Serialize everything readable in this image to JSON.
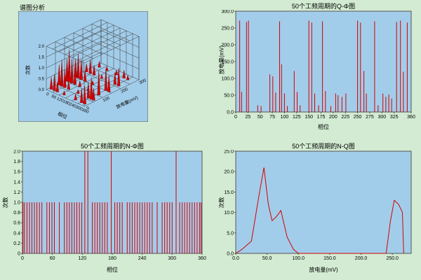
{
  "page": {
    "panel_label": "谱图分析",
    "bg_color": "#d2ebd2"
  },
  "colors": {
    "plot_bg": "#a2cdea",
    "stem": "#d40000",
    "frame": "#555555",
    "grid3d": "#3a3a3a",
    "text": "#000000"
  },
  "chart_data": [
    {
      "id": "prpd_3d",
      "type": "heatmap",
      "title": "",
      "xlabel": "相位",
      "ylabel": "放电量(mV)",
      "zlabel": "次数",
      "x_tick_labels": [
        "0",
        "60",
        "120",
        "180",
        "240",
        "300",
        "360"
      ],
      "y_tick_labels": [
        "0",
        "100",
        "200",
        "300"
      ],
      "z_tick_labels": [
        "0.0",
        "0.5",
        "1.0",
        "1.5",
        "2.0"
      ],
      "rows": [
        {
          "s": 0.9,
          "peaks": [
            [
              0.1,
              0.15
            ],
            [
              0.3,
              0.1
            ],
            [
              0.55,
              0.12
            ],
            [
              0.75,
              0.2
            ],
            [
              0.85,
              0.12
            ]
          ]
        },
        {
          "s": 0.7,
          "peaks": [
            [
              0.05,
              0.2
            ],
            [
              0.15,
              0.35
            ],
            [
              0.25,
              0.25
            ],
            [
              0.45,
              0.1
            ],
            [
              0.8,
              0.3
            ],
            [
              0.9,
              0.45
            ]
          ]
        },
        {
          "s": 0.5,
          "peaks": [
            [
              0.05,
              0.45
            ],
            [
              0.12,
              0.6
            ],
            [
              0.2,
              0.5
            ],
            [
              0.3,
              0.25
            ],
            [
              0.5,
              0.1
            ],
            [
              0.85,
              0.55
            ],
            [
              0.93,
              0.4
            ]
          ]
        },
        {
          "s": 0.35,
          "peaks": [
            [
              0.04,
              0.55
            ],
            [
              0.1,
              0.8
            ],
            [
              0.17,
              0.6
            ],
            [
              0.25,
              0.4
            ],
            [
              0.38,
              0.15
            ],
            [
              0.6,
              0.08
            ],
            [
              0.88,
              0.6
            ]
          ]
        },
        {
          "s": 0.2,
          "peaks": [
            [
              0.05,
              0.5
            ],
            [
              0.12,
              0.65
            ],
            [
              0.2,
              0.45
            ],
            [
              0.3,
              0.2
            ],
            [
              0.55,
              0.1
            ],
            [
              0.82,
              0.4
            ],
            [
              0.9,
              0.55
            ],
            [
              0.96,
              0.3
            ]
          ]
        },
        {
          "s": 0.05,
          "peaks": [
            [
              0.06,
              0.3
            ],
            [
              0.14,
              0.4
            ],
            [
              0.22,
              0.25
            ],
            [
              0.4,
              0.1
            ],
            [
              0.7,
              0.15
            ],
            [
              0.86,
              0.35
            ],
            [
              0.94,
              0.45
            ]
          ]
        }
      ]
    },
    {
      "id": "q_phi",
      "type": "bar",
      "title": "50个工频周期的Q-Φ图",
      "xlabel": "相位",
      "ylabel": "放电量(mV)",
      "xlim": [
        0,
        360
      ],
      "ylim": [
        0,
        300
      ],
      "xtick_vals": [
        0,
        25,
        50,
        75,
        100,
        125,
        150,
        175,
        200,
        225,
        250,
        275,
        300,
        325,
        360
      ],
      "xtick_labels": [
        "0",
        "25",
        "50",
        "75",
        "100",
        "125",
        "150",
        "175",
        "200",
        "225",
        "250",
        "275",
        "300",
        "325",
        "360"
      ],
      "ytick_vals": [
        300,
        250,
        200,
        150,
        100,
        50,
        0
      ],
      "ytick_labels": [
        "300.0",
        "250.0",
        "200.0",
        "150.0",
        "100.0",
        "50.0",
        "0.0"
      ],
      "stems": [
        [
          8,
          272
        ],
        [
          12,
          60
        ],
        [
          22,
          268
        ],
        [
          26,
          272
        ],
        [
          45,
          20
        ],
        [
          52,
          18
        ],
        [
          70,
          112
        ],
        [
          76,
          106
        ],
        [
          82,
          58
        ],
        [
          90,
          270
        ],
        [
          94,
          142
        ],
        [
          100,
          55
        ],
        [
          106,
          18
        ],
        [
          120,
          122
        ],
        [
          126,
          60
        ],
        [
          132,
          20
        ],
        [
          150,
          272
        ],
        [
          156,
          266
        ],
        [
          162,
          55
        ],
        [
          170,
          20
        ],
        [
          178,
          270
        ],
        [
          184,
          62
        ],
        [
          195,
          18
        ],
        [
          205,
          55
        ],
        [
          210,
          50
        ],
        [
          218,
          45
        ],
        [
          226,
          55
        ],
        [
          250,
          272
        ],
        [
          256,
          266
        ],
        [
          263,
          122
        ],
        [
          268,
          55
        ],
        [
          285,
          270
        ],
        [
          292,
          20
        ],
        [
          302,
          55
        ],
        [
          308,
          45
        ],
        [
          314,
          52
        ],
        [
          320,
          40
        ],
        [
          330,
          268
        ],
        [
          338,
          272
        ],
        [
          344,
          120
        ],
        [
          352,
          266
        ]
      ]
    },
    {
      "id": "n_phi",
      "type": "bar",
      "title": "50个工频周期的N-Φ图",
      "xlabel": "相位",
      "ylabel": "次数",
      "xlim": [
        0,
        360
      ],
      "ylim": [
        0,
        2
      ],
      "xtick_vals": [
        0,
        60,
        120,
        180,
        240,
        300,
        360
      ],
      "xtick_labels": [
        "0",
        "60",
        "120",
        "180",
        "240",
        "300",
        "360"
      ],
      "ytick_vals": [
        2.0,
        1.8,
        1.6,
        1.4,
        1.2,
        1.0,
        0.8,
        0.6,
        0.4,
        0.2,
        0
      ],
      "ytick_labels": [
        "2.0",
        "1.8",
        "1.6",
        "1.4",
        "1.2",
        "1.0",
        "0.8",
        "0.6",
        "0.4",
        "0.2",
        "0"
      ],
      "stems": [
        [
          1,
          1
        ],
        [
          4,
          1
        ],
        [
          9,
          1
        ],
        [
          14,
          1
        ],
        [
          19,
          1
        ],
        [
          24,
          1
        ],
        [
          29,
          1
        ],
        [
          34,
          1
        ],
        [
          39,
          1
        ],
        [
          49,
          1
        ],
        [
          54,
          1
        ],
        [
          59,
          1
        ],
        [
          64,
          1
        ],
        [
          74,
          1
        ],
        [
          84,
          1
        ],
        [
          89,
          1
        ],
        [
          94,
          1
        ],
        [
          99,
          1
        ],
        [
          104,
          1
        ],
        [
          109,
          1
        ],
        [
          114,
          1
        ],
        [
          119,
          1
        ],
        [
          125,
          2
        ],
        [
          131,
          2
        ],
        [
          140,
          1
        ],
        [
          145,
          1
        ],
        [
          150,
          1
        ],
        [
          155,
          1
        ],
        [
          160,
          1
        ],
        [
          165,
          1
        ],
        [
          170,
          1
        ],
        [
          178,
          2
        ],
        [
          185,
          1
        ],
        [
          190,
          1
        ],
        [
          195,
          1
        ],
        [
          200,
          1
        ],
        [
          210,
          1
        ],
        [
          215,
          1
        ],
        [
          220,
          1
        ],
        [
          225,
          1
        ],
        [
          230,
          1
        ],
        [
          235,
          1
        ],
        [
          240,
          1
        ],
        [
          245,
          1
        ],
        [
          250,
          1
        ],
        [
          255,
          1
        ],
        [
          260,
          1
        ],
        [
          270,
          1
        ],
        [
          280,
          1
        ],
        [
          285,
          1
        ],
        [
          290,
          1
        ],
        [
          295,
          1
        ],
        [
          300,
          1
        ],
        [
          308,
          2
        ],
        [
          315,
          1
        ],
        [
          320,
          1
        ],
        [
          325,
          1
        ],
        [
          330,
          1
        ],
        [
          335,
          1
        ],
        [
          340,
          1
        ],
        [
          345,
          1
        ],
        [
          350,
          1
        ],
        [
          355,
          1
        ],
        [
          358,
          1
        ]
      ]
    },
    {
      "id": "n_q",
      "type": "line",
      "title": "50个工频周期的N-Q图",
      "xlabel": "放电量(mV)",
      "ylabel": "次数",
      "xlim": [
        0,
        280
      ],
      "ylim": [
        0,
        25
      ],
      "xtick_vals": [
        0,
        50,
        100,
        150,
        200,
        250
      ],
      "xtick_labels": [
        "0.0",
        "50.0",
        "100.0",
        "150.0",
        "200.0",
        "250.0"
      ],
      "ytick_vals": [
        25,
        20,
        15,
        10,
        5,
        0
      ],
      "ytick_labels": [
        "25.0",
        "20.0",
        "15.0",
        "10.0",
        "5.0",
        "0.0"
      ],
      "points": [
        [
          0,
          0
        ],
        [
          10,
          1
        ],
        [
          25,
          3
        ],
        [
          38,
          15
        ],
        [
          45,
          21
        ],
        [
          52,
          12
        ],
        [
          58,
          8
        ],
        [
          65,
          9
        ],
        [
          72,
          10.5
        ],
        [
          82,
          4
        ],
        [
          92,
          1
        ],
        [
          100,
          0
        ],
        [
          240,
          0
        ],
        [
          247,
          8
        ],
        [
          253,
          13
        ],
        [
          260,
          12
        ],
        [
          266,
          10
        ],
        [
          268,
          0
        ]
      ]
    }
  ]
}
